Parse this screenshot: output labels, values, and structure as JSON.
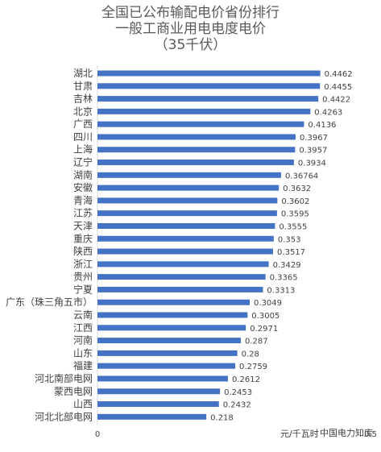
{
  "chart_data": {
    "type": "bar",
    "orientation": "horizontal",
    "title_lines": [
      "全国已公布输配电价省份排行",
      "一般工商业用电电度电价",
      "（35千伏）"
    ],
    "categories": [
      "湖北",
      "甘肃",
      "吉林",
      "北京",
      "广西",
      "四川",
      "上海",
      "辽宁",
      "湖南",
      "安徽",
      "青海",
      "江苏",
      "天津",
      "重庆",
      "陕西",
      "浙江",
      "贵州",
      "宁夏",
      "广东（珠三角五市）",
      "云南",
      "江西",
      "河南",
      "山东",
      "福建",
      "河北南部电网",
      "蒙西电网",
      "山西",
      "河北北部电网"
    ],
    "values": [
      0.4462,
      0.4455,
      0.4422,
      0.4263,
      0.4136,
      0.3967,
      0.3957,
      0.3934,
      0.36764,
      0.3632,
      0.3602,
      0.3595,
      0.3555,
      0.353,
      0.3517,
      0.3429,
      0.3365,
      0.3313,
      0.3049,
      0.3005,
      0.2971,
      0.287,
      0.28,
      0.2759,
      0.2612,
      0.2453,
      0.2432,
      0.218
    ],
    "value_labels": [
      "0.4462",
      "0.4455",
      "0.4422",
      "0.4263",
      "0.4136",
      "0.3967",
      "0.3957",
      "0.3934",
      "0.36764",
      "0.3632",
      "0.3602",
      "0.3595",
      "0.3555",
      "0.353",
      "0.3517",
      "0.3429",
      "0.3365",
      "0.3313",
      "0.3049",
      "0.3005",
      "0.2971",
      "0.287",
      "0.28",
      "0.2759",
      "0.2612",
      "0.2453",
      "0.2432",
      "0.218"
    ],
    "x_ticks": [
      "0",
      "0.5"
    ],
    "xlim": [
      0,
      0.5
    ],
    "xlabel": "元/千瓦时",
    "bar_color": "#4472c4"
  },
  "watermark": "中国电力知库"
}
